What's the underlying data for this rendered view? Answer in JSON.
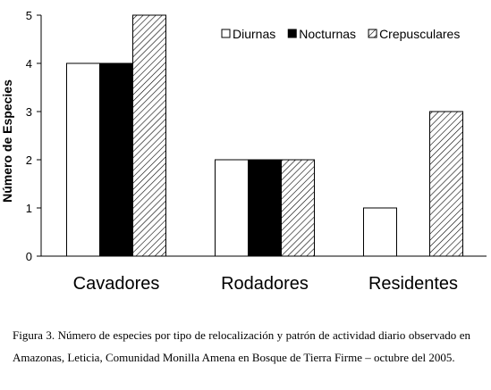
{
  "chart_data": {
    "type": "bar",
    "categories": [
      "Cavadores",
      "Rodadores",
      "Residentes"
    ],
    "series": [
      {
        "name": "Diurnas",
        "values": [
          4,
          2,
          1
        ],
        "fill": "#ffffff"
      },
      {
        "name": "Nocturnas",
        "values": [
          4,
          2,
          0
        ],
        "fill": "#000000"
      },
      {
        "name": "Crepusculares",
        "values": [
          5,
          2,
          3
        ],
        "fill": "hatch"
      }
    ],
    "ylabel": "Número de Especies",
    "ylim": [
      0,
      5
    ],
    "yticks": [
      0,
      1,
      2,
      3,
      4,
      5
    ],
    "grid": false,
    "legend_position": "top-right"
  },
  "caption": "Figura 3. Número de especies por tipo de relocalización y patrón de actividad diario observado en Amazonas, Leticia, Comunidad Monilla Amena en Bosque de Tierra Firme – octubre del 2005."
}
